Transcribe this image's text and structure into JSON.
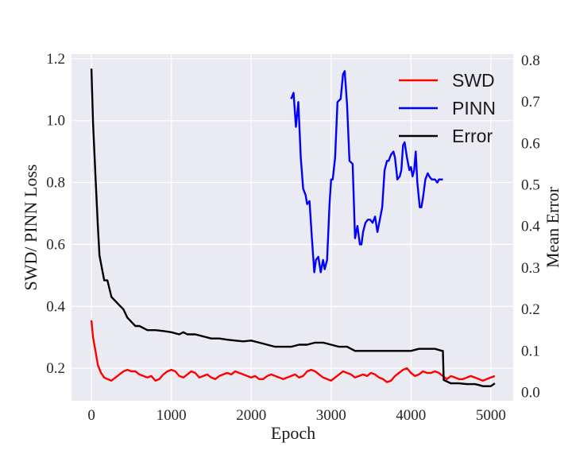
{
  "chart_data": {
    "type": "line",
    "xlabel": "Epoch",
    "ylabel": "SWD/ PINN Loss",
    "y2label": "Mean Error",
    "xlim": [
      -250,
      5280
    ],
    "ylim": [
      0.095,
      1.215
    ],
    "y2lim": [
      -0.02,
      0.815
    ],
    "x_ticks": [
      0,
      1000,
      2000,
      3000,
      4000,
      5000
    ],
    "y_ticks": [
      0.2,
      0.4,
      0.6,
      0.8,
      1.0,
      1.2
    ],
    "y2_ticks": [
      0.0,
      0.1,
      0.2,
      0.3,
      0.4,
      0.5,
      0.6,
      0.7,
      0.8
    ],
    "grid": true,
    "legend_position": "top-right",
    "series": [
      {
        "name": "SWD",
        "axis": "left",
        "color": "#ff0000",
        "x": [
          0,
          20,
          50,
          80,
          120,
          160,
          200,
          250,
          300,
          350,
          400,
          450,
          500,
          550,
          600,
          650,
          700,
          750,
          800,
          850,
          900,
          950,
          1000,
          1050,
          1100,
          1150,
          1200,
          1250,
          1300,
          1350,
          1400,
          1450,
          1500,
          1550,
          1600,
          1650,
          1700,
          1750,
          1800,
          1850,
          1900,
          1950,
          2000,
          2050,
          2100,
          2150,
          2200,
          2250,
          2300,
          2350,
          2400,
          2450,
          2500,
          2550,
          2600,
          2650,
          2700,
          2750,
          2800,
          2850,
          2900,
          2950,
          3000,
          3050,
          3100,
          3150,
          3200,
          3250,
          3300,
          3350,
          3400,
          3450,
          3500,
          3550,
          3600,
          3650,
          3700,
          3750,
          3800,
          3850,
          3900,
          3950,
          4000,
          4050,
          4100,
          4150,
          4200,
          4250,
          4300,
          4350,
          4400,
          4450,
          4500,
          4550,
          4600,
          4650,
          4700,
          4750,
          4800,
          4850,
          4900,
          4950,
          5000,
          5050
        ],
        "y": [
          0.355,
          0.3,
          0.255,
          0.21,
          0.185,
          0.17,
          0.165,
          0.16,
          0.17,
          0.18,
          0.19,
          0.195,
          0.19,
          0.19,
          0.18,
          0.175,
          0.17,
          0.175,
          0.16,
          0.165,
          0.18,
          0.19,
          0.195,
          0.19,
          0.175,
          0.17,
          0.18,
          0.19,
          0.185,
          0.17,
          0.175,
          0.18,
          0.17,
          0.165,
          0.175,
          0.18,
          0.185,
          0.18,
          0.19,
          0.185,
          0.18,
          0.175,
          0.17,
          0.175,
          0.165,
          0.165,
          0.175,
          0.18,
          0.175,
          0.17,
          0.165,
          0.17,
          0.175,
          0.18,
          0.17,
          0.175,
          0.19,
          0.195,
          0.19,
          0.18,
          0.17,
          0.165,
          0.16,
          0.17,
          0.18,
          0.19,
          0.185,
          0.18,
          0.17,
          0.175,
          0.18,
          0.175,
          0.185,
          0.18,
          0.17,
          0.165,
          0.155,
          0.16,
          0.175,
          0.185,
          0.195,
          0.2,
          0.185,
          0.175,
          0.18,
          0.19,
          0.185,
          0.185,
          0.19,
          0.185,
          0.175,
          0.165,
          0.175,
          0.17,
          0.165,
          0.165,
          0.17,
          0.175,
          0.17,
          0.165,
          0.16,
          0.165,
          0.17,
          0.175
        ]
      },
      {
        "name": "PINN",
        "axis": "left",
        "color": "#0000ff",
        "x": [
          2500,
          2530,
          2560,
          2590,
          2620,
          2650,
          2680,
          2700,
          2730,
          2760,
          2790,
          2810,
          2840,
          2870,
          2900,
          2920,
          2950,
          2980,
          3000,
          3020,
          3050,
          3080,
          3120,
          3150,
          3170,
          3200,
          3230,
          3270,
          3300,
          3330,
          3360,
          3380,
          3400,
          3430,
          3460,
          3490,
          3520,
          3550,
          3580,
          3610,
          3640,
          3670,
          3700,
          3720,
          3750,
          3780,
          3800,
          3830,
          3860,
          3880,
          3900,
          3920,
          3950,
          3980,
          4000,
          4020,
          4040,
          4060,
          4080,
          4110,
          4130,
          4150,
          4180,
          4210,
          4230,
          4260,
          4280,
          4300,
          4330,
          4350,
          4380,
          4400
        ],
        "y": [
          1.07,
          1.09,
          0.98,
          1.06,
          0.88,
          0.78,
          0.76,
          0.73,
          0.74,
          0.62,
          0.51,
          0.55,
          0.56,
          0.51,
          0.55,
          0.52,
          0.55,
          0.73,
          0.81,
          0.81,
          0.88,
          1.06,
          1.07,
          1.15,
          1.16,
          1.05,
          0.87,
          0.86,
          0.62,
          0.66,
          0.6,
          0.6,
          0.64,
          0.67,
          0.68,
          0.68,
          0.67,
          0.69,
          0.64,
          0.68,
          0.72,
          0.84,
          0.87,
          0.87,
          0.89,
          0.9,
          0.88,
          0.81,
          0.82,
          0.84,
          0.92,
          0.93,
          0.88,
          0.84,
          0.85,
          0.82,
          0.84,
          0.9,
          0.8,
          0.72,
          0.72,
          0.75,
          0.81,
          0.83,
          0.82,
          0.81,
          0.81,
          0.81,
          0.8,
          0.81,
          0.81,
          0.81
        ]
      },
      {
        "name": "Error",
        "axis": "right",
        "color": "#000000",
        "x": [
          0,
          20,
          50,
          80,
          100,
          130,
          160,
          200,
          250,
          300,
          350,
          400,
          450,
          500,
          550,
          600,
          650,
          700,
          800,
          900,
          1000,
          1100,
          1150,
          1200,
          1300,
          1400,
          1500,
          1600,
          1700,
          1800,
          1900,
          2000,
          2100,
          2200,
          2300,
          2400,
          2500,
          2600,
          2700,
          2800,
          2900,
          3000,
          3100,
          3200,
          3300,
          3400,
          3500,
          3600,
          3700,
          3800,
          3900,
          4000,
          4100,
          4200,
          4300,
          4390,
          4400,
          4410,
          4500,
          4600,
          4700,
          4800,
          4850,
          4900,
          5000,
          5050
        ],
        "y": [
          0.78,
          0.65,
          0.52,
          0.4,
          0.33,
          0.3,
          0.27,
          0.27,
          0.23,
          0.22,
          0.21,
          0.2,
          0.18,
          0.17,
          0.16,
          0.16,
          0.155,
          0.15,
          0.15,
          0.148,
          0.145,
          0.14,
          0.145,
          0.14,
          0.14,
          0.135,
          0.13,
          0.13,
          0.127,
          0.125,
          0.123,
          0.125,
          0.12,
          0.115,
          0.11,
          0.11,
          0.11,
          0.115,
          0.115,
          0.12,
          0.12,
          0.115,
          0.11,
          0.11,
          0.1,
          0.1,
          0.1,
          0.1,
          0.1,
          0.1,
          0.1,
          0.1,
          0.105,
          0.105,
          0.105,
          0.1,
          0.1,
          0.03,
          0.022,
          0.022,
          0.02,
          0.02,
          0.018,
          0.015,
          0.015,
          0.022
        ]
      }
    ]
  }
}
